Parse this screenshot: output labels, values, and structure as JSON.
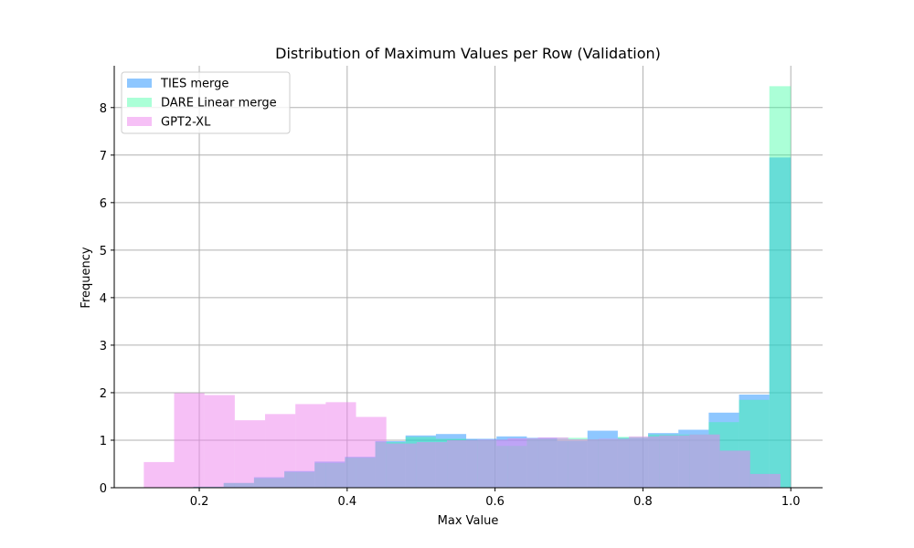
{
  "chart_data": {
    "type": "bar",
    "title": "Distribution of Maximum Values per Row (Validation)",
    "xlabel": "Max Value",
    "ylabel": "Frequency",
    "xlim": [
      0.085,
      1.043
    ],
    "ylim": [
      0,
      8.88
    ],
    "xticks": [
      0.2,
      0.4,
      0.6,
      0.8,
      1.0
    ],
    "xtick_labels": [
      "0.2",
      "0.4",
      "0.6",
      "0.8",
      "1.0"
    ],
    "yticks": [
      0,
      1,
      2,
      3,
      4,
      5,
      6,
      7,
      8
    ],
    "ytick_labels": [
      "0",
      "1",
      "2",
      "3",
      "4",
      "5",
      "6",
      "7",
      "8"
    ],
    "grid": true,
    "legend_position": "top-left",
    "series": [
      {
        "name": "TIES merge",
        "color": "#1E90FF",
        "alpha": 0.5,
        "bins": [
          [
            0.192,
            0.233,
            0.02
          ],
          [
            0.233,
            0.274,
            0.1
          ],
          [
            0.274,
            0.315,
            0.22
          ],
          [
            0.315,
            0.356,
            0.35
          ],
          [
            0.356,
            0.397,
            0.55
          ],
          [
            0.397,
            0.438,
            0.65
          ],
          [
            0.438,
            0.479,
            0.98
          ],
          [
            0.479,
            0.52,
            1.1
          ],
          [
            0.52,
            0.561,
            1.13
          ],
          [
            0.561,
            0.602,
            1.03
          ],
          [
            0.602,
            0.643,
            1.08
          ],
          [
            0.643,
            0.684,
            1.05
          ],
          [
            0.684,
            0.725,
            0.98
          ],
          [
            0.725,
            0.766,
            1.2
          ],
          [
            0.766,
            0.807,
            1.05
          ],
          [
            0.807,
            0.848,
            1.15
          ],
          [
            0.848,
            0.889,
            1.22
          ],
          [
            0.889,
            0.93,
            1.58
          ],
          [
            0.93,
            0.971,
            1.96
          ],
          [
            0.971,
            1.0,
            6.95
          ]
        ]
      },
      {
        "name": "DARE Linear merge",
        "color": "#2EFF9B",
        "alpha": 0.4,
        "bins": [
          [
            0.192,
            0.233,
            0.02
          ],
          [
            0.233,
            0.274,
            0.1
          ],
          [
            0.274,
            0.315,
            0.2
          ],
          [
            0.315,
            0.356,
            0.33
          ],
          [
            0.356,
            0.397,
            0.52
          ],
          [
            0.397,
            0.438,
            0.63
          ],
          [
            0.438,
            0.479,
            0.96
          ],
          [
            0.479,
            0.52,
            1.07
          ],
          [
            0.52,
            0.561,
            1.03
          ],
          [
            0.561,
            0.602,
            1.0
          ],
          [
            0.602,
            0.643,
            0.88
          ],
          [
            0.643,
            0.684,
            1.03
          ],
          [
            0.684,
            0.725,
            1.05
          ],
          [
            0.725,
            0.766,
            1.02
          ],
          [
            0.766,
            0.807,
            1.07
          ],
          [
            0.807,
            0.848,
            1.12
          ],
          [
            0.848,
            0.889,
            1.12
          ],
          [
            0.889,
            0.93,
            1.38
          ],
          [
            0.93,
            0.971,
            1.85
          ],
          [
            0.971,
            1.0,
            8.45
          ]
        ]
      },
      {
        "name": "GPT2-XL",
        "color": "#EE82EE",
        "alpha": 0.5,
        "bins": [
          [
            0.125,
            0.166,
            0.54
          ],
          [
            0.166,
            0.207,
            1.99
          ],
          [
            0.207,
            0.248,
            1.95
          ],
          [
            0.248,
            0.289,
            1.42
          ],
          [
            0.289,
            0.33,
            1.55
          ],
          [
            0.33,
            0.371,
            1.76
          ],
          [
            0.371,
            0.412,
            1.8
          ],
          [
            0.412,
            0.453,
            1.49
          ],
          [
            0.453,
            0.494,
            0.93
          ],
          [
            0.494,
            0.535,
            0.96
          ],
          [
            0.535,
            0.576,
            1.0
          ],
          [
            0.576,
            0.617,
            1.01
          ],
          [
            0.617,
            0.658,
            1.04
          ],
          [
            0.658,
            0.699,
            1.06
          ],
          [
            0.699,
            0.74,
            1.02
          ],
          [
            0.74,
            0.781,
            1.03
          ],
          [
            0.781,
            0.822,
            1.08
          ],
          [
            0.822,
            0.863,
            1.1
          ],
          [
            0.863,
            0.904,
            1.12
          ],
          [
            0.904,
            0.945,
            0.78
          ],
          [
            0.945,
            0.986,
            0.29
          ]
        ]
      }
    ]
  }
}
